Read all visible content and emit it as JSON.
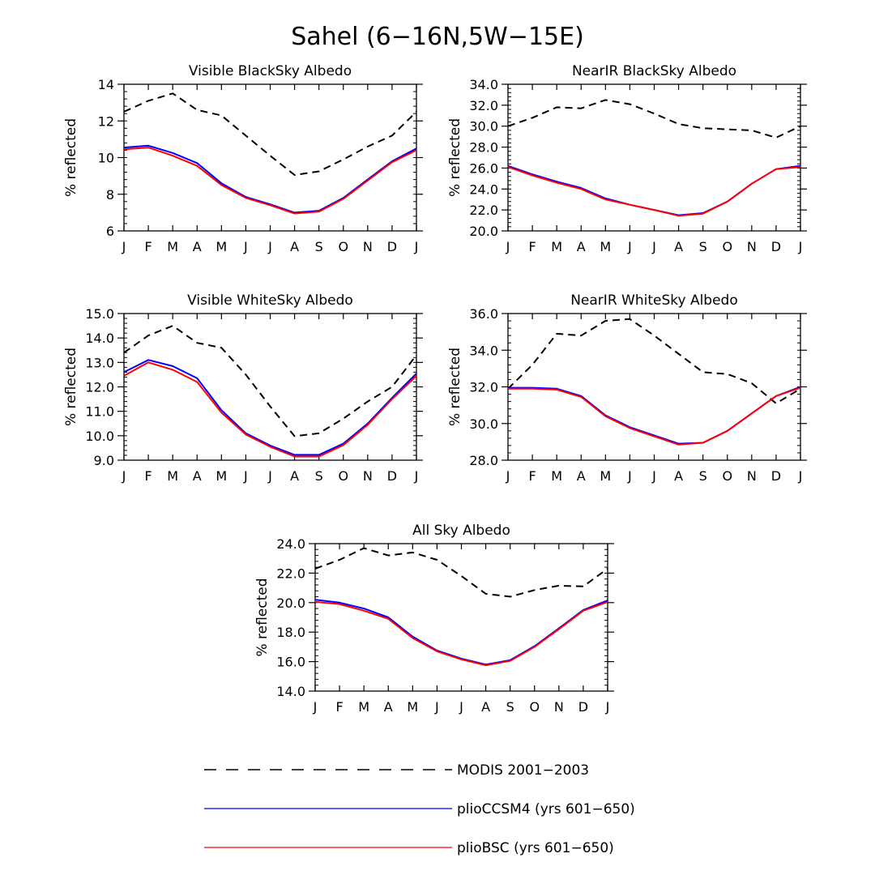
{
  "figure": {
    "title": "Sahel (6−16N,5W−15E)"
  },
  "months": [
    "J",
    "F",
    "M",
    "A",
    "M",
    "J",
    "J",
    "A",
    "S",
    "O",
    "N",
    "D",
    "J"
  ],
  "series_styles": {
    "MODIS 2001−2003": {
      "color": "#000000",
      "dash": "dashed"
    },
    "plioCCSM4 (yrs 601−650)": {
      "color": "#0000ff",
      "dash": "solid"
    },
    "plioBSC (yrs 601−650)": {
      "color": "#ff0000",
      "dash": "solid"
    }
  },
  "legend": [
    {
      "label": "MODIS 2001−2003",
      "color": "#000000",
      "style": "dashed"
    },
    {
      "label": "plioCCSM4 (yrs 601−650)",
      "color": "#0000ff",
      "style": "solid"
    },
    {
      "label": "plioBSC (yrs 601−650)",
      "color": "#ff0000",
      "style": "solid"
    }
  ],
  "chart_data": [
    {
      "type": "line",
      "title": "Visible BlackSky Albedo",
      "xlabel": "",
      "ylabel": "% reflected",
      "ylim": [
        6,
        14
      ],
      "yticks": [
        6,
        8,
        10,
        12,
        14
      ],
      "ytick_labels": [
        "6",
        "8",
        "10",
        "12",
        "14"
      ],
      "categories": [
        "J",
        "F",
        "M",
        "A",
        "M",
        "J",
        "J",
        "A",
        "S",
        "O",
        "N",
        "D",
        "J"
      ],
      "series": [
        {
          "name": "MODIS 2001−2003",
          "values": [
            12.5,
            13.1,
            13.5,
            12.6,
            12.3,
            11.2,
            10.1,
            9.05,
            9.25,
            9.9,
            10.6,
            11.2,
            12.5
          ]
        },
        {
          "name": "plioCCSM4 (yrs 601−650)",
          "values": [
            10.55,
            10.65,
            10.25,
            9.7,
            8.6,
            7.85,
            7.45,
            7.0,
            7.1,
            7.8,
            8.8,
            9.8,
            10.5
          ]
        },
        {
          "name": "plioBSC (yrs 601−650)",
          "values": [
            10.45,
            10.55,
            10.1,
            9.55,
            8.5,
            7.8,
            7.4,
            6.95,
            7.05,
            7.75,
            8.75,
            9.75,
            10.4
          ]
        }
      ]
    },
    {
      "type": "line",
      "title": "NearIR BlackSky Albedo",
      "xlabel": "",
      "ylabel": "% reflected",
      "ylim": [
        20,
        34
      ],
      "yticks": [
        20,
        22,
        24,
        26,
        28,
        30,
        32,
        34
      ],
      "ytick_labels": [
        "20.0",
        "22.0",
        "24.0",
        "26.0",
        "28.0",
        "30.0",
        "32.0",
        "34.0"
      ],
      "categories": [
        "J",
        "F",
        "M",
        "A",
        "M",
        "J",
        "J",
        "A",
        "S",
        "O",
        "N",
        "D",
        "J"
      ],
      "series": [
        {
          "name": "MODIS 2001−2003",
          "values": [
            30.0,
            30.8,
            31.8,
            31.7,
            32.5,
            32.1,
            31.2,
            30.2,
            29.8,
            29.7,
            29.6,
            28.9,
            30.0
          ]
        },
        {
          "name": "plioCCSM4 (yrs 601−650)",
          "values": [
            26.2,
            25.4,
            24.7,
            24.1,
            23.1,
            22.5,
            22.0,
            21.5,
            21.7,
            22.8,
            24.5,
            25.9,
            26.2
          ]
        },
        {
          "name": "plioBSC (yrs 601−650)",
          "values": [
            26.1,
            25.3,
            24.6,
            24.0,
            23.0,
            22.5,
            22.0,
            21.45,
            21.65,
            22.8,
            24.5,
            25.9,
            26.1
          ]
        }
      ]
    },
    {
      "type": "line",
      "title": "Visible WhiteSky Albedo",
      "xlabel": "",
      "ylabel": "% reflected",
      "ylim": [
        9,
        15
      ],
      "yticks": [
        9,
        10,
        11,
        12,
        13,
        14,
        15
      ],
      "ytick_labels": [
        "9.0",
        "10.0",
        "11.0",
        "12.0",
        "13.0",
        "14.0",
        "15.0"
      ],
      "categories": [
        "J",
        "F",
        "M",
        "A",
        "M",
        "J",
        "J",
        "A",
        "S",
        "O",
        "N",
        "D",
        "J"
      ],
      "series": [
        {
          "name": "MODIS 2001−2003",
          "values": [
            13.4,
            14.1,
            14.5,
            13.8,
            13.6,
            12.5,
            11.2,
            9.98,
            10.1,
            10.7,
            11.4,
            12.0,
            13.3
          ]
        },
        {
          "name": "plioCCSM4 (yrs 601−650)",
          "values": [
            12.6,
            13.1,
            12.85,
            12.35,
            11.05,
            10.1,
            9.6,
            9.22,
            9.22,
            9.68,
            10.5,
            11.55,
            12.55
          ]
        },
        {
          "name": "plioBSC (yrs 601−650)",
          "values": [
            12.45,
            13.0,
            12.7,
            12.2,
            10.95,
            10.05,
            9.55,
            9.15,
            9.15,
            9.62,
            10.45,
            11.5,
            12.45
          ]
        }
      ]
    },
    {
      "type": "line",
      "title": "NearIR WhiteSky Albedo",
      "xlabel": "",
      "ylabel": "% reflected",
      "ylim": [
        28,
        36
      ],
      "yticks": [
        28,
        30,
        32,
        34,
        36
      ],
      "ytick_labels": [
        "28.0",
        "30.0",
        "32.0",
        "34.0",
        "36.0"
      ],
      "categories": [
        "J",
        "F",
        "M",
        "A",
        "M",
        "J",
        "J",
        "A",
        "S",
        "O",
        "N",
        "D",
        "J"
      ],
      "series": [
        {
          "name": "MODIS 2001−2003",
          "values": [
            31.9,
            33.2,
            34.9,
            34.8,
            35.6,
            35.7,
            34.8,
            33.8,
            32.8,
            32.7,
            32.2,
            31.1,
            31.9
          ]
        },
        {
          "name": "plioCCSM4 (yrs 601−650)",
          "values": [
            31.95,
            31.95,
            31.9,
            31.5,
            30.45,
            29.8,
            29.35,
            28.9,
            28.95,
            29.6,
            30.55,
            31.5,
            32.0
          ]
        },
        {
          "name": "plioBSC (yrs 601−650)",
          "values": [
            31.9,
            31.9,
            31.85,
            31.45,
            30.4,
            29.75,
            29.3,
            28.85,
            28.95,
            29.6,
            30.55,
            31.5,
            31.95
          ]
        }
      ]
    },
    {
      "type": "line",
      "title": "All Sky Albedo",
      "xlabel": "",
      "ylabel": "% reflected",
      "ylim": [
        14,
        24
      ],
      "yticks": [
        14,
        16,
        18,
        20,
        22,
        24
      ],
      "ytick_labels": [
        "14.0",
        "16.0",
        "18.0",
        "20.0",
        "22.0",
        "24.0"
      ],
      "categories": [
        "J",
        "F",
        "M",
        "A",
        "M",
        "J",
        "J",
        "A",
        "S",
        "O",
        "N",
        "D",
        "J"
      ],
      "series": [
        {
          "name": "MODIS 2001−2003",
          "values": [
            22.3,
            22.9,
            23.7,
            23.2,
            23.4,
            22.9,
            21.8,
            20.6,
            20.4,
            20.85,
            21.15,
            21.1,
            22.3
          ]
        },
        {
          "name": "plioCCSM4 (yrs 601−650)",
          "values": [
            20.2,
            20.0,
            19.6,
            19.0,
            17.7,
            16.75,
            16.2,
            15.8,
            16.1,
            17.05,
            18.25,
            19.5,
            20.15
          ]
        },
        {
          "name": "plioBSC (yrs 601−650)",
          "values": [
            20.05,
            19.9,
            19.45,
            18.9,
            17.6,
            16.7,
            16.15,
            15.75,
            16.05,
            17.0,
            18.2,
            19.45,
            20.05
          ]
        }
      ]
    }
  ]
}
